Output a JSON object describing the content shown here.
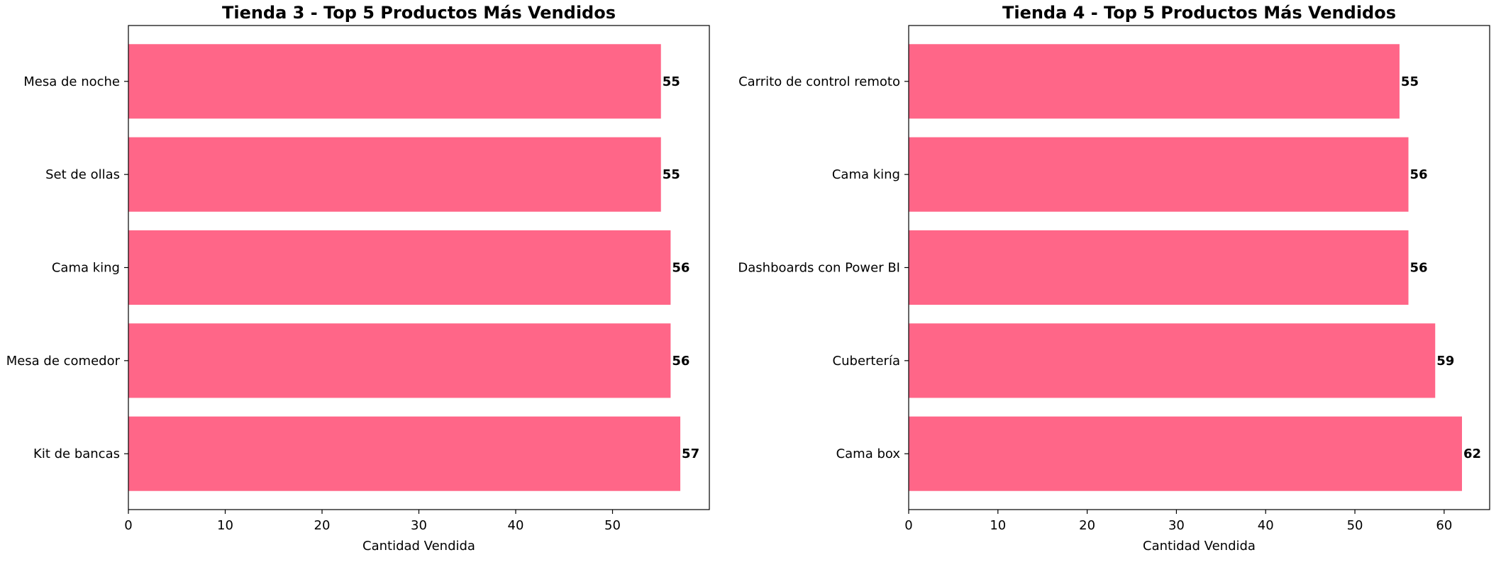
{
  "chart_data": [
    {
      "type": "bar",
      "orientation": "horizontal",
      "title": "Tienda 3 - Top 5 Productos Más Vendidos",
      "xlabel": "Cantidad Vendida",
      "ylabel": "",
      "categories": [
        "Mesa de noche",
        "Set de ollas",
        "Cama king",
        "Mesa de comedor",
        "Kit de bancas"
      ],
      "values": [
        55,
        55,
        56,
        56,
        57
      ],
      "xlim": [
        0,
        60
      ],
      "xticks": [
        0,
        10,
        20,
        30,
        40,
        50
      ],
      "grid": false,
      "bar_color": "#ff6688"
    },
    {
      "type": "bar",
      "orientation": "horizontal",
      "title": "Tienda 4 - Top 5 Productos Más Vendidos",
      "xlabel": "Cantidad Vendida",
      "ylabel": "",
      "categories": [
        "Carrito de control remoto",
        "Cama king",
        "Dashboards con Power BI",
        "Cubertería",
        "Cama box"
      ],
      "values": [
        55,
        56,
        56,
        59,
        62
      ],
      "xlim": [
        0,
        65.1
      ],
      "xticks": [
        0,
        10,
        20,
        30,
        40,
        50,
        60
      ],
      "grid": false,
      "bar_color": "#ff6688"
    }
  ]
}
